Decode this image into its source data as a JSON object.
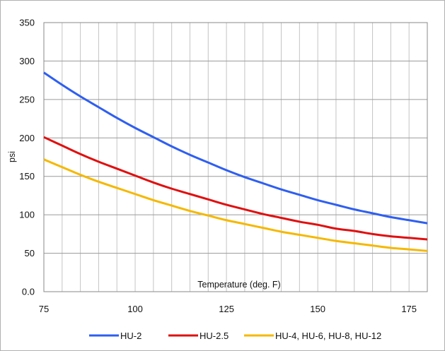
{
  "chart_data": {
    "type": "line",
    "title": "",
    "xlabel": "Temperature (deg. F)",
    "ylabel": "psi",
    "xlim": [
      75,
      180
    ],
    "ylim": [
      0,
      350
    ],
    "x_ticks": [
      75,
      100,
      125,
      150,
      175
    ],
    "x_tick_labels": [
      "75",
      "100",
      "125",
      "150",
      "175"
    ],
    "y_ticks": [
      0,
      50,
      100,
      150,
      200,
      250,
      300,
      350
    ],
    "y_tick_labels": [
      "0.0",
      "50",
      "100",
      "150",
      "200",
      "250",
      "300",
      "350"
    ],
    "x_minor_step": 5,
    "grid": true,
    "legend_position": "bottom",
    "series": [
      {
        "name": "HU-2",
        "color": "#2f5ff0",
        "x": [
          75,
          80,
          85,
          90,
          95,
          100,
          105,
          110,
          115,
          120,
          125,
          130,
          135,
          140,
          145,
          150,
          155,
          160,
          165,
          170,
          175,
          180
        ],
        "y": [
          285,
          269,
          254,
          240,
          226,
          213,
          201,
          189,
          178,
          168,
          158,
          149,
          141,
          133,
          126,
          119,
          113,
          107,
          102,
          97,
          93,
          89
        ]
      },
      {
        "name": "HU-2.5",
        "color": "#e01010",
        "x": [
          75,
          80,
          85,
          90,
          95,
          100,
          105,
          110,
          115,
          120,
          125,
          130,
          135,
          140,
          145,
          150,
          155,
          160,
          165,
          170,
          175,
          180
        ],
        "y": [
          201,
          190,
          179,
          169,
          160,
          151,
          142,
          134,
          127,
          120,
          113,
          107,
          101,
          96,
          91,
          87,
          82,
          79,
          75,
          72,
          70,
          68
        ]
      },
      {
        "name": "HU-4, HU-6, HU-8, HU-12",
        "color": "#f5b800",
        "x": [
          75,
          80,
          85,
          90,
          95,
          100,
          105,
          110,
          115,
          120,
          125,
          130,
          135,
          140,
          145,
          150,
          155,
          160,
          165,
          170,
          175,
          180
        ],
        "y": [
          172,
          162,
          152,
          143,
          135,
          127,
          119,
          112,
          105,
          99,
          93,
          88,
          83,
          78,
          74,
          70,
          66,
          63,
          60,
          57,
          55,
          53
        ]
      }
    ]
  }
}
